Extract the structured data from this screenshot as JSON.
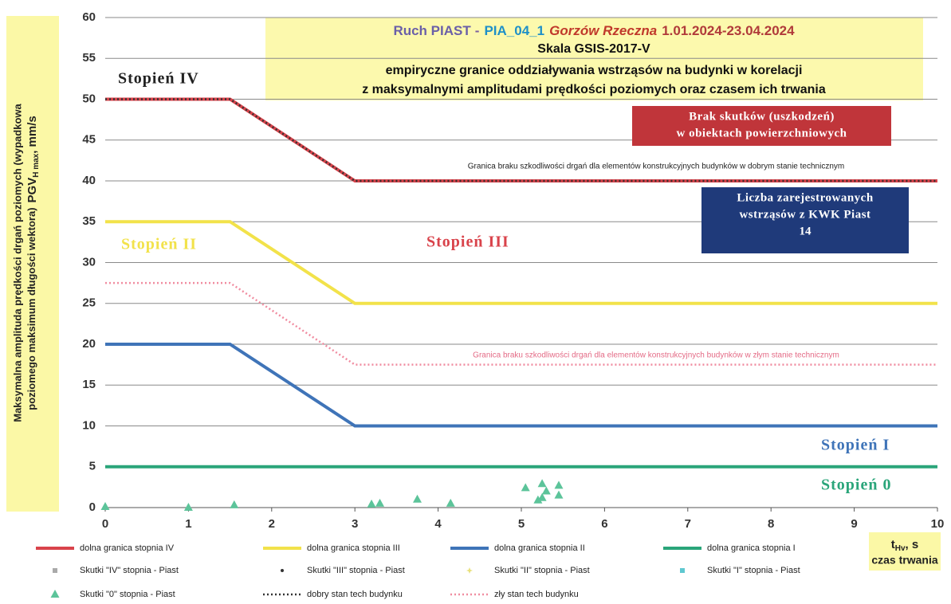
{
  "chart_data": {
    "type": "line",
    "title_parts": [
      {
        "text": "Ruch PIAST",
        "color": "#6a5fa8"
      },
      {
        "text": "-",
        "color": "#7b5fa0"
      },
      {
        "text": "PIA_04_1",
        "color": "#1e90c8"
      },
      {
        "text": "Gorzów Rzeczna",
        "color": "#c0392b"
      },
      {
        "text": "1.01.2024-23.04.2024",
        "color": "#b03a3a"
      }
    ],
    "scale_title": "Skala GSIS-2017-V",
    "subtitle": [
      "empiryczne granice oddziaływania wstrząsów na budynki w korelacji",
      "z maksymalnymi amplitudami prędkości poziomych oraz czasem ich trwania"
    ],
    "ylabel": {
      "line1": "Maksymalna amplituda prędkości drgań poziomych (wypadkowa",
      "line2": "poziomego maksimum długości wektora)",
      "main": "PGV",
      "sub": "H max",
      "tail": ", mm/s"
    },
    "xlabel": {
      "main": "t",
      "sub": "Hv",
      "tail": ", s",
      "line2": "czas trwania"
    },
    "xlim": [
      0,
      10
    ],
    "xticks": [
      0,
      1,
      2,
      3,
      4,
      5,
      6,
      7,
      8,
      9,
      10
    ],
    "ylim": [
      0,
      60
    ],
    "yticks": [
      0,
      5,
      10,
      15,
      20,
      25,
      30,
      35,
      40,
      45,
      50,
      55,
      60
    ],
    "grid": true,
    "zones": [
      {
        "text": "Stopień  IV",
        "color": "#222222"
      },
      {
        "text": "Stopień  II",
        "color": "#f2e24a"
      },
      {
        "text": "Stopień  III",
        "color": "#d9434b"
      },
      {
        "text": "Stopień  I",
        "color": "#3f74b8"
      },
      {
        "text": "Stopień  0",
        "color": "#2aa57a"
      }
    ],
    "boxes": [
      {
        "lines": [
          "Brak skutków (uszkodzeń)",
          "w obiektach powierzchniowych"
        ],
        "color": "#c0353a"
      },
      {
        "lines": [
          "Liczba zarejestrowanych",
          "wstrząsów z KWK Piast"
        ],
        "count": 14,
        "color": "#1f3a7a"
      }
    ],
    "line_notes": [
      {
        "text": "Granica braku szkodliwości drgań dla elementów konstrukcyjnych budynków w dobrym stanie technicznym",
        "color": "#222222"
      },
      {
        "text": "Granica braku szkodliwości drgań dla elementów konstrukcyjnych budynków w złym stanie technicznym",
        "color": "#e46b86"
      }
    ],
    "series": [
      {
        "name": "dolna granica stopnia IV",
        "color": "#d9434b",
        "x": [
          0,
          1.5,
          3,
          10
        ],
        "values": [
          50,
          50,
          40,
          40
        ]
      },
      {
        "name": "dolna granica stopnia III",
        "color": "#f2e24a",
        "x": [
          0,
          1.5,
          3,
          10
        ],
        "values": [
          35,
          35,
          25,
          25
        ]
      },
      {
        "name": "dolna granica stopnia II",
        "color": "#3f74b8",
        "x": [
          0,
          1.5,
          3,
          10
        ],
        "values": [
          20,
          20,
          10,
          10
        ]
      },
      {
        "name": "dolna granica stopnia I",
        "color": "#2aa57a",
        "x": [
          0,
          10
        ],
        "values": [
          5,
          5
        ]
      },
      {
        "name": "Skutki \"IV\" stopnia - Piast",
        "color": "#aaaaaa",
        "marker": "square",
        "x": [],
        "values": []
      },
      {
        "name": "Skutki \"III\" stopnia - Piast",
        "color": "#333333",
        "marker": "dot",
        "x": [],
        "values": []
      },
      {
        "name": "Skutki \"II\" stopnia - Piast",
        "color": "#e8e07a",
        "marker": "star",
        "x": [],
        "values": []
      },
      {
        "name": "Skutki \"I\" stopnia - Piast",
        "color": "#5fc8d0",
        "marker": "square",
        "x": [],
        "values": []
      },
      {
        "name": "Skutki \"0\" stopnia - Piast",
        "color": "#5cc49a",
        "marker": "triangle",
        "x": [
          0,
          1,
          1.55,
          3.2,
          3.3,
          3.75,
          4.15,
          5.05,
          5.25,
          5.3,
          5.25,
          5.2,
          5.45,
          5.45
        ],
        "values": [
          0.1,
          0,
          0.3,
          0.4,
          0.5,
          1,
          0.5,
          2.4,
          2.9,
          2,
          1.2,
          0.9,
          2.7,
          1.5
        ]
      },
      {
        "name": "dobry stan tech  budynku",
        "color": "#333333",
        "dash": "dotted",
        "x": [
          0,
          1.5,
          3,
          10
        ],
        "values": [
          50,
          50,
          40,
          40
        ]
      },
      {
        "name": "zły stan tech  budynku",
        "color": "#f08ca0",
        "dash": "dotted",
        "x": [
          0,
          1.5,
          3,
          10
        ],
        "values": [
          27.5,
          27.5,
          17.5,
          17.5
        ]
      }
    ]
  }
}
